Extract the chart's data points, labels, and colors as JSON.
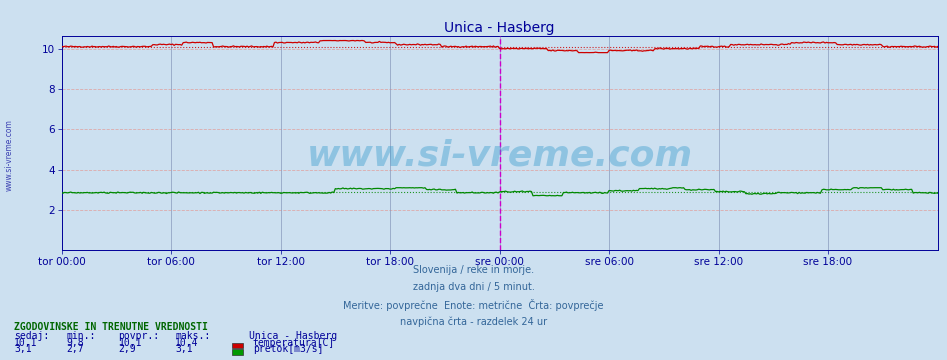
{
  "title": "Unica - Hasberg",
  "title_color": "#000099",
  "bg_color": "#cce0f0",
  "plot_bg_color": "#cce0f0",
  "fig_bg_color": "#cce0f0",
  "tick_color": "#000099",
  "grid_color_v": "#8899bb",
  "grid_color_h_pink": "#ddaaaa",
  "xlim": [
    0,
    576
  ],
  "ylim": [
    0,
    10.625
  ],
  "yticks": [
    2,
    4,
    6,
    8,
    10
  ],
  "xtick_labels": [
    "tor 00:00",
    "tor 06:00",
    "tor 12:00",
    "tor 18:00",
    "sre 00:00",
    "sre 06:00",
    "sre 12:00",
    "sre 18:00"
  ],
  "xtick_positions": [
    0,
    72,
    144,
    216,
    288,
    360,
    432,
    504
  ],
  "n_points": 577,
  "temp_color": "#cc0000",
  "temp_avg": 10.1,
  "flow_color": "#008800",
  "flow_avg": 2.9,
  "vline_pos": 288,
  "vline_color": "#cc00cc",
  "watermark": "www.si-vreme.com",
  "watermark_color": "#3399cc",
  "watermark_alpha": 0.4,
  "subtitle_lines": [
    "Slovenija / reke in morje.",
    "zadnja dva dni / 5 minut.",
    "Meritve: povprečne  Enote: metrične  Črta: povprečje",
    "navpična črta - razdelek 24 ur"
  ],
  "subtitle_color": "#336699",
  "legend_title": "ZGODOVINSKE IN TRENUTNE VREDNOSTI",
  "legend_title_color": "#006600",
  "legend_headers": [
    "sedaj:",
    "min.:",
    "povpr.:",
    "maks.:",
    "Unica - Hasberg"
  ],
  "legend_row1": [
    "10,1",
    "9,8",
    "10,1",
    "10,4",
    "temperatura[C]"
  ],
  "legend_row2": [
    "3,1",
    "2,7",
    "2,9",
    "3,1",
    "pretok[m3/s]"
  ],
  "legend_color": "#000099",
  "temp_patch_color": "#cc0000",
  "flow_patch_color": "#009900",
  "side_label": "www.si-vreme.com",
  "side_label_color": "#000099"
}
